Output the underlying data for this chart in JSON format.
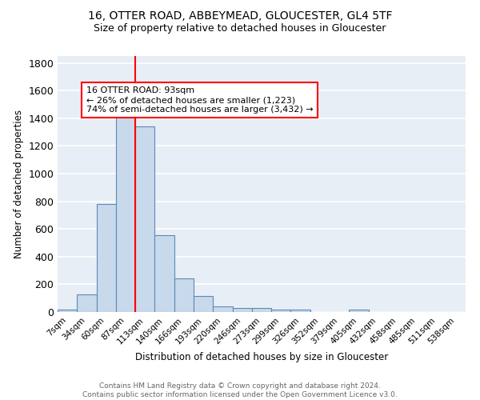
{
  "title_line1": "16, OTTER ROAD, ABBEYMEAD, GLOUCESTER, GL4 5TF",
  "title_line2": "Size of property relative to detached houses in Gloucester",
  "xlabel": "Distribution of detached houses by size in Gloucester",
  "ylabel": "Number of detached properties",
  "bar_color": "#c9d9ec",
  "bar_edge_color": "#5b8ab5",
  "background_color": "#e8eef5",
  "grid_color": "white",
  "categories": [
    "7sqm",
    "34sqm",
    "60sqm",
    "87sqm",
    "113sqm",
    "140sqm",
    "166sqm",
    "193sqm",
    "220sqm",
    "246sqm",
    "273sqm",
    "299sqm",
    "326sqm",
    "352sqm",
    "379sqm",
    "405sqm",
    "432sqm",
    "458sqm",
    "485sqm",
    "511sqm",
    "538sqm"
  ],
  "values": [
    15,
    125,
    780,
    1450,
    1340,
    555,
    245,
    115,
    40,
    30,
    28,
    15,
    18,
    0,
    0,
    20,
    0,
    0,
    0,
    0,
    0
  ],
  "ylim": [
    0,
    1850
  ],
  "yticks": [
    0,
    200,
    400,
    600,
    800,
    1000,
    1200,
    1400,
    1600,
    1800
  ],
  "property_line_x": 3.5,
  "annotation_text": "16 OTTER ROAD: 93sqm\n← 26% of detached houses are smaller (1,223)\n74% of semi-detached houses are larger (3,432) →",
  "annotation_box_color": "white",
  "annotation_box_edge_color": "red",
  "footer_line1": "Contains HM Land Registry data © Crown copyright and database right 2024.",
  "footer_line2": "Contains public sector information licensed under the Open Government Licence v3.0."
}
